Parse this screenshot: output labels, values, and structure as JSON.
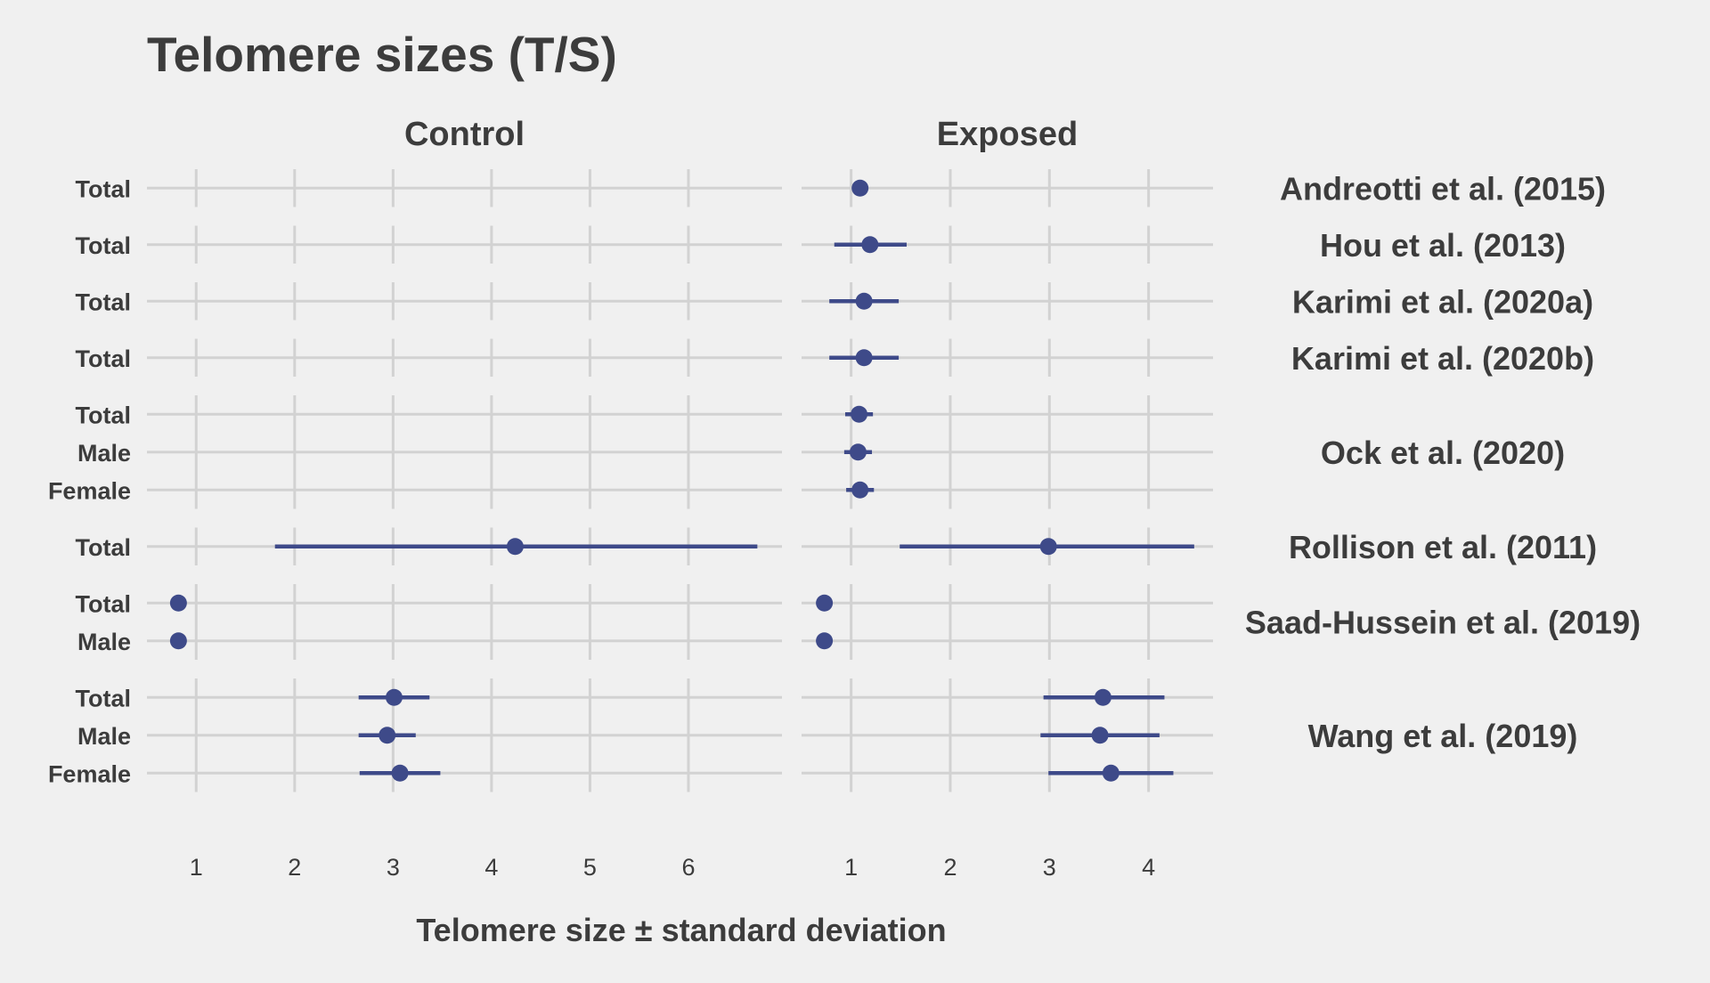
{
  "chart_data": {
    "type": "scatter",
    "title": "Telomere sizes (T/S)",
    "xlabel": "Telomere size ± standard deviation",
    "ylabel": "",
    "colors": {
      "point": "#3e4a89",
      "grid": "#d2d2d2",
      "background": "#f0f0f0",
      "text": "#3c3c3c"
    },
    "panels": [
      {
        "name": "Control",
        "xlim": [
          0.5,
          6.95
        ],
        "ticks": [
          1,
          2,
          3,
          4,
          5,
          6
        ]
      },
      {
        "name": "Exposed",
        "xlim": [
          0.5,
          4.65
        ],
        "ticks": [
          1,
          2,
          3,
          4
        ]
      }
    ],
    "studies": [
      {
        "name": "Andreotti et al. (2015)",
        "rows": [
          {
            "label": "Total",
            "Control": null,
            "Exposed": {
              "mean": 1.09,
              "lo": null,
              "hi": null
            }
          }
        ]
      },
      {
        "name": "Hou et al. (2013)",
        "rows": [
          {
            "label": "Total",
            "Control": null,
            "Exposed": {
              "mean": 1.19,
              "lo": 0.83,
              "hi": 1.56
            }
          }
        ]
      },
      {
        "name": "Karimi et al. (2020a)",
        "rows": [
          {
            "label": "Total",
            "Control": null,
            "Exposed": {
              "mean": 1.13,
              "lo": 0.78,
              "hi": 1.48
            }
          }
        ]
      },
      {
        "name": "Karimi et al. (2020b)",
        "rows": [
          {
            "label": "Total",
            "Control": null,
            "Exposed": {
              "mean": 1.13,
              "lo": 0.78,
              "hi": 1.48
            }
          }
        ]
      },
      {
        "name": "Ock et al. (2020)",
        "rows": [
          {
            "label": "Total",
            "Control": null,
            "Exposed": {
              "mean": 1.08,
              "lo": 0.94,
              "hi": 1.22
            }
          },
          {
            "label": "Male",
            "Control": null,
            "Exposed": {
              "mean": 1.07,
              "lo": 0.93,
              "hi": 1.21
            }
          },
          {
            "label": "Female",
            "Control": null,
            "Exposed": {
              "mean": 1.09,
              "lo": 0.95,
              "hi": 1.23
            }
          }
        ]
      },
      {
        "name": "Rollison et al. (2011)",
        "rows": [
          {
            "label": "Total",
            "Control": {
              "mean": 4.24,
              "lo": 1.8,
              "hi": 6.7
            },
            "Exposed": {
              "mean": 2.99,
              "lo": 1.49,
              "hi": 4.46
            }
          }
        ]
      },
      {
        "name": "Saad-Hussein et al. (2019)",
        "rows": [
          {
            "label": "Total",
            "Control": {
              "mean": 0.82,
              "lo": null,
              "hi": null
            },
            "Exposed": {
              "mean": 0.73,
              "lo": null,
              "hi": null
            }
          },
          {
            "label": "Male",
            "Control": {
              "mean": 0.82,
              "lo": null,
              "hi": null
            },
            "Exposed": {
              "mean": 0.73,
              "lo": null,
              "hi": null
            }
          }
        ]
      },
      {
        "name": "Wang et al. (2019)",
        "rows": [
          {
            "label": "Total",
            "Control": {
              "mean": 3.01,
              "lo": 2.65,
              "hi": 3.37
            },
            "Exposed": {
              "mean": 3.54,
              "lo": 2.94,
              "hi": 4.16
            }
          },
          {
            "label": "Male",
            "Control": {
              "mean": 2.94,
              "lo": 2.65,
              "hi": 3.23
            },
            "Exposed": {
              "mean": 3.51,
              "lo": 2.91,
              "hi": 4.11
            }
          },
          {
            "label": "Female",
            "Control": {
              "mean": 3.07,
              "lo": 2.66,
              "hi": 3.48
            },
            "Exposed": {
              "mean": 3.62,
              "lo": 2.99,
              "hi": 4.25
            }
          }
        ]
      }
    ]
  }
}
